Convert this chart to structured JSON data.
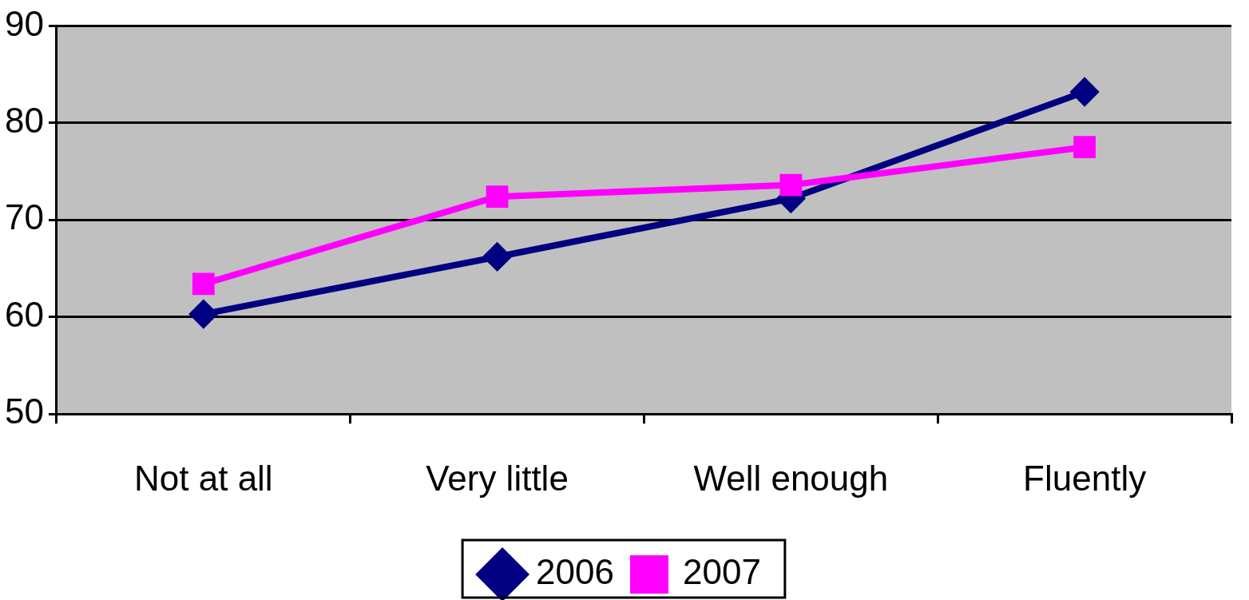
{
  "chart_data": {
    "type": "line",
    "categories": [
      "Not at all",
      "Very little",
      "Well enough",
      "Fluently"
    ],
    "series": [
      {
        "name": "2006",
        "color": "#000080",
        "values": [
          60.3,
          66.2,
          72.2,
          83.2
        ],
        "marker": "diamond"
      },
      {
        "name": "2007",
        "color": "#ff00ff",
        "values": [
          63.4,
          72.4,
          73.6,
          77.5
        ],
        "marker": "square"
      }
    ],
    "ylim": [
      50,
      90
    ],
    "yticks": [
      50,
      60,
      70,
      80,
      90
    ],
    "grid": "y",
    "legend": "bottom",
    "line_style": "solid"
  }
}
